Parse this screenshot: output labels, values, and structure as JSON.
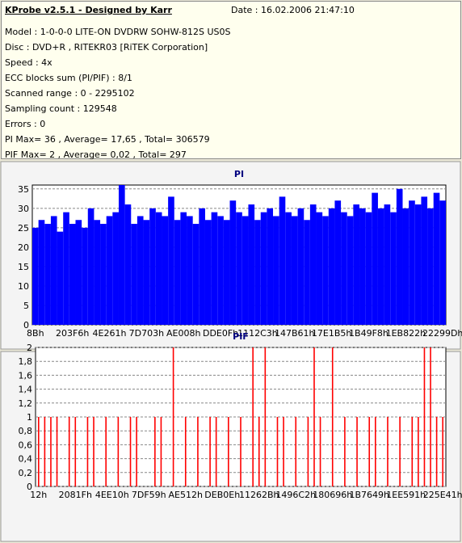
{
  "info": {
    "title": "KProbe v2.5.1 - Designed by Karr",
    "date": "Date : 16.02.2006 21:47:10",
    "lines": [
      "Model : 1-0-0-0 LITE-ON DVDRW SOHW-812S  US0S",
      "Disc : DVD+R , RITEKR03 [RiTEK Corporation]",
      "Speed : 4x",
      "ECC blocks sum (PI/PIF) : 8/1",
      "Scanned range : 0 - 2295102",
      "Sampling count : 129548",
      "Errors : 0",
      "PI Max= 36 , Average= 17,65 , Total= 306579",
      "PIF Max= 2 , Average= 0,02 , Total= 297"
    ]
  },
  "chart_data": [
    {
      "type": "bar",
      "title": "PI",
      "color": "#0000ff",
      "grid": true,
      "ylim": [
        0,
        36
      ],
      "yticks": [
        0,
        5,
        10,
        15,
        20,
        25,
        30,
        35
      ],
      "categories": [
        "8Bh",
        null,
        null,
        null,
        null,
        null,
        "203F6h",
        null,
        null,
        null,
        null,
        null,
        "4E261h",
        null,
        null,
        null,
        null,
        null,
        "7D703h",
        null,
        null,
        null,
        null,
        null,
        "AE008h",
        null,
        null,
        null,
        null,
        null,
        "DDE0Fh",
        null,
        null,
        null,
        null,
        null,
        "1112C3h",
        null,
        null,
        null,
        null,
        null,
        "147B61h",
        null,
        null,
        null,
        null,
        null,
        "17E1B5h",
        null,
        null,
        null,
        null,
        null,
        "1B49F8h",
        null,
        null,
        null,
        null,
        null,
        "1EB822h",
        null,
        null,
        null,
        null,
        null,
        "22299Dh"
      ],
      "values": [
        25,
        27,
        26,
        28,
        24,
        29,
        26,
        27,
        25,
        30,
        27,
        26,
        28,
        29,
        36,
        31,
        26,
        28,
        27,
        30,
        29,
        28,
        33,
        27,
        29,
        28,
        26,
        30,
        27,
        29,
        28,
        27,
        32,
        29,
        28,
        31,
        27,
        29,
        30,
        28,
        33,
        29,
        28,
        30,
        27,
        31,
        29,
        28,
        30,
        32,
        29,
        28,
        31,
        30,
        29,
        34,
        30,
        31,
        29,
        35,
        30,
        32,
        31,
        33,
        30,
        34,
        32
      ]
    },
    {
      "type": "bar",
      "title": "PIF",
      "color": "#ff0000",
      "grid": true,
      "ylim": [
        0,
        2
      ],
      "yticks": [
        0,
        {
          "value": 0.2,
          "label": "0,2"
        },
        {
          "value": 0.4,
          "label": "0,4"
        },
        {
          "value": 0.6,
          "label": "0,6"
        },
        {
          "value": 0.8,
          "label": "0,8"
        },
        1,
        {
          "value": 1.2,
          "label": "1,2"
        },
        {
          "value": 1.4,
          "label": "1,4"
        },
        {
          "value": 1.6,
          "label": "1,6"
        },
        {
          "value": 1.8,
          "label": "1,8"
        },
        2
      ],
      "categories": [
        "12h",
        null,
        null,
        null,
        null,
        null,
        "2081Fh",
        null,
        null,
        null,
        null,
        null,
        "4EE10h",
        null,
        null,
        null,
        null,
        null,
        "7DF59h",
        null,
        null,
        null,
        null,
        null,
        "AE512h",
        null,
        null,
        null,
        null,
        null,
        "DEB0Eh",
        null,
        null,
        null,
        null,
        null,
        "11262Bh",
        null,
        null,
        null,
        null,
        null,
        "1496C2h",
        null,
        null,
        null,
        null,
        null,
        "180696h",
        null,
        null,
        null,
        null,
        null,
        "1B7649h",
        null,
        null,
        null,
        null,
        null,
        "1EE591h",
        null,
        null,
        null,
        null,
        null,
        "225E41h"
      ],
      "values": [
        1,
        1,
        1,
        1,
        0,
        1,
        1,
        0,
        1,
        1,
        0,
        1,
        0,
        1,
        0,
        1,
        1,
        0,
        0,
        1,
        1,
        0,
        2,
        0,
        1,
        0,
        1,
        0,
        1,
        1,
        0,
        1,
        0,
        1,
        0,
        2,
        1,
        2,
        0,
        1,
        1,
        0,
        1,
        0,
        1,
        2,
        1,
        0,
        2,
        0,
        1,
        0,
        1,
        0,
        1,
        1,
        0,
        1,
        0,
        1,
        0,
        1,
        1,
        2,
        2,
        1,
        1
      ]
    }
  ]
}
